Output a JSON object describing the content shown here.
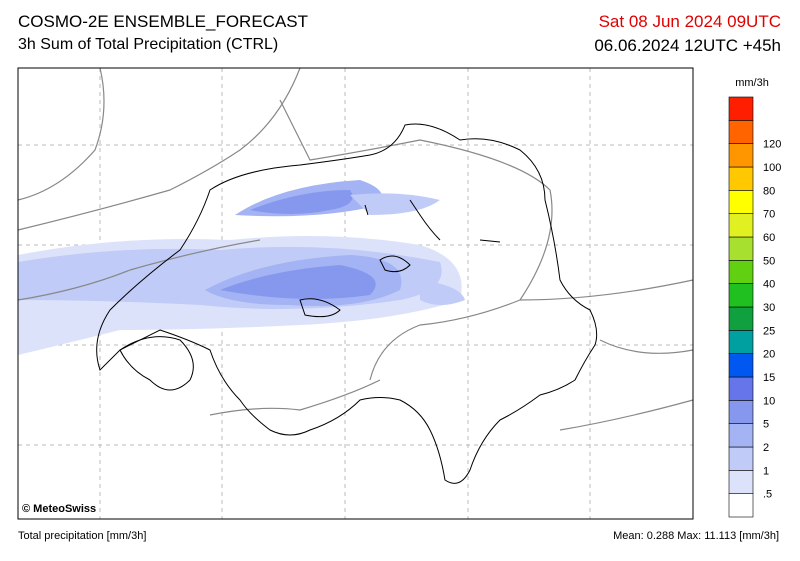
{
  "header": {
    "title": "COSMO-2E ENSEMBLE_FORECAST",
    "subtitle": "3h Sum of Total Precipitation (CTRL)",
    "valid_time": "Sat 08 Jun 2024 09UTC",
    "run_time": "06.06.2024 12UTC +45h"
  },
  "map": {
    "copyright": "© MeteoSwiss"
  },
  "colorbar": {
    "unit": "mm/3h",
    "labels": [
      ".5",
      "1",
      "2",
      "5",
      "10",
      "15",
      "20",
      "25",
      "30",
      "40",
      "50",
      "60",
      "70",
      "80",
      "100",
      "120"
    ],
    "colors": [
      "#ffffff",
      "#dde2fb",
      "#c0cbf7",
      "#a3b3f3",
      "#8598ee",
      "#6676ea",
      "#0058f0",
      "#00a0a0",
      "#10a040",
      "#20c020",
      "#60d010",
      "#a8e030",
      "#e0f020",
      "#ffff00",
      "#ffc800",
      "#ff9600",
      "#ff6400",
      "#ff1e00"
    ]
  },
  "footer": {
    "left": "Total precipitation [mm/3h]",
    "right": "Mean:  0.288 Max:  11.113 [mm/3h]"
  }
}
